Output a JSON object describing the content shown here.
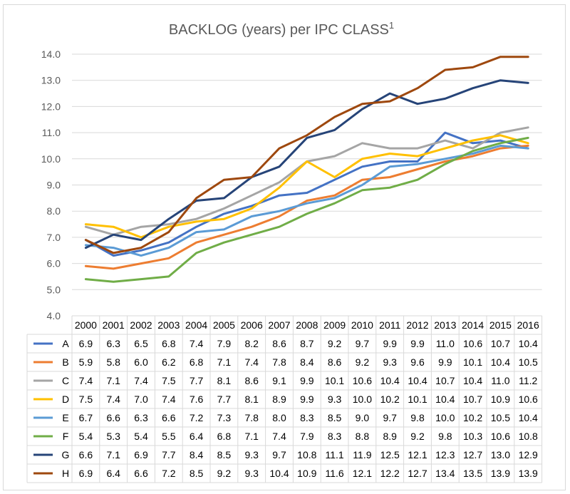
{
  "chart_data": {
    "type": "line",
    "title": "BACKLOG (years) per IPC CLASS",
    "title_superscript": "1",
    "ylim": [
      4.0,
      14.0
    ],
    "ytick_labels": [
      "4.0",
      "5.0",
      "6.0",
      "7.0",
      "8.0",
      "9.0",
      "10.0",
      "11.0",
      "12.0",
      "13.0",
      "14.0"
    ],
    "grid": true,
    "legend": "data-table",
    "categories": [
      "2000",
      "2001",
      "2002",
      "2003",
      "2004",
      "2005",
      "2006",
      "2007",
      "2008",
      "2009",
      "2010",
      "2011",
      "2012",
      "2013",
      "2014",
      "2015",
      "2016"
    ],
    "series": [
      {
        "name": "A",
        "color": "#4472c4",
        "values": [
          6.9,
          6.3,
          6.5,
          6.8,
          7.4,
          7.9,
          8.2,
          8.6,
          8.7,
          9.2,
          9.7,
          9.9,
          9.9,
          11.0,
          10.6,
          10.7,
          10.4
        ]
      },
      {
        "name": "B",
        "color": "#ed7d31",
        "values": [
          5.9,
          5.8,
          6.0,
          6.2,
          6.8,
          7.1,
          7.4,
          7.8,
          8.4,
          8.6,
          9.2,
          9.3,
          9.6,
          9.9,
          10.1,
          10.4,
          10.5
        ]
      },
      {
        "name": "C",
        "color": "#a5a5a5",
        "values": [
          7.4,
          7.1,
          7.4,
          7.5,
          7.7,
          8.1,
          8.6,
          9.1,
          9.9,
          10.1,
          10.6,
          10.4,
          10.4,
          10.7,
          10.4,
          11.0,
          11.2
        ]
      },
      {
        "name": "D",
        "color": "#ffc000",
        "values": [
          7.5,
          7.4,
          7.0,
          7.4,
          7.6,
          7.7,
          8.1,
          8.9,
          9.9,
          9.3,
          10.0,
          10.2,
          10.1,
          10.4,
          10.7,
          10.9,
          10.6
        ]
      },
      {
        "name": "E",
        "color": "#5b9bd5",
        "values": [
          6.7,
          6.6,
          6.3,
          6.6,
          7.2,
          7.3,
          7.8,
          8.0,
          8.3,
          8.5,
          9.0,
          9.7,
          9.8,
          10.0,
          10.2,
          10.5,
          10.4
        ]
      },
      {
        "name": "F",
        "color": "#70ad47",
        "values": [
          5.4,
          5.3,
          5.4,
          5.5,
          6.4,
          6.8,
          7.1,
          7.4,
          7.9,
          8.3,
          8.8,
          8.9,
          9.2,
          9.8,
          10.3,
          10.6,
          10.8
        ]
      },
      {
        "name": "G",
        "color": "#264478",
        "values": [
          6.6,
          7.1,
          6.9,
          7.7,
          8.4,
          8.5,
          9.3,
          9.7,
          10.8,
          11.1,
          11.9,
          12.5,
          12.1,
          12.3,
          12.7,
          13.0,
          12.9
        ]
      },
      {
        "name": "H",
        "color": "#9e480e",
        "values": [
          6.9,
          6.4,
          6.6,
          7.2,
          8.5,
          9.2,
          9.3,
          10.4,
          10.9,
          11.6,
          12.1,
          12.2,
          12.7,
          13.4,
          13.5,
          13.9,
          13.9
        ]
      }
    ]
  }
}
